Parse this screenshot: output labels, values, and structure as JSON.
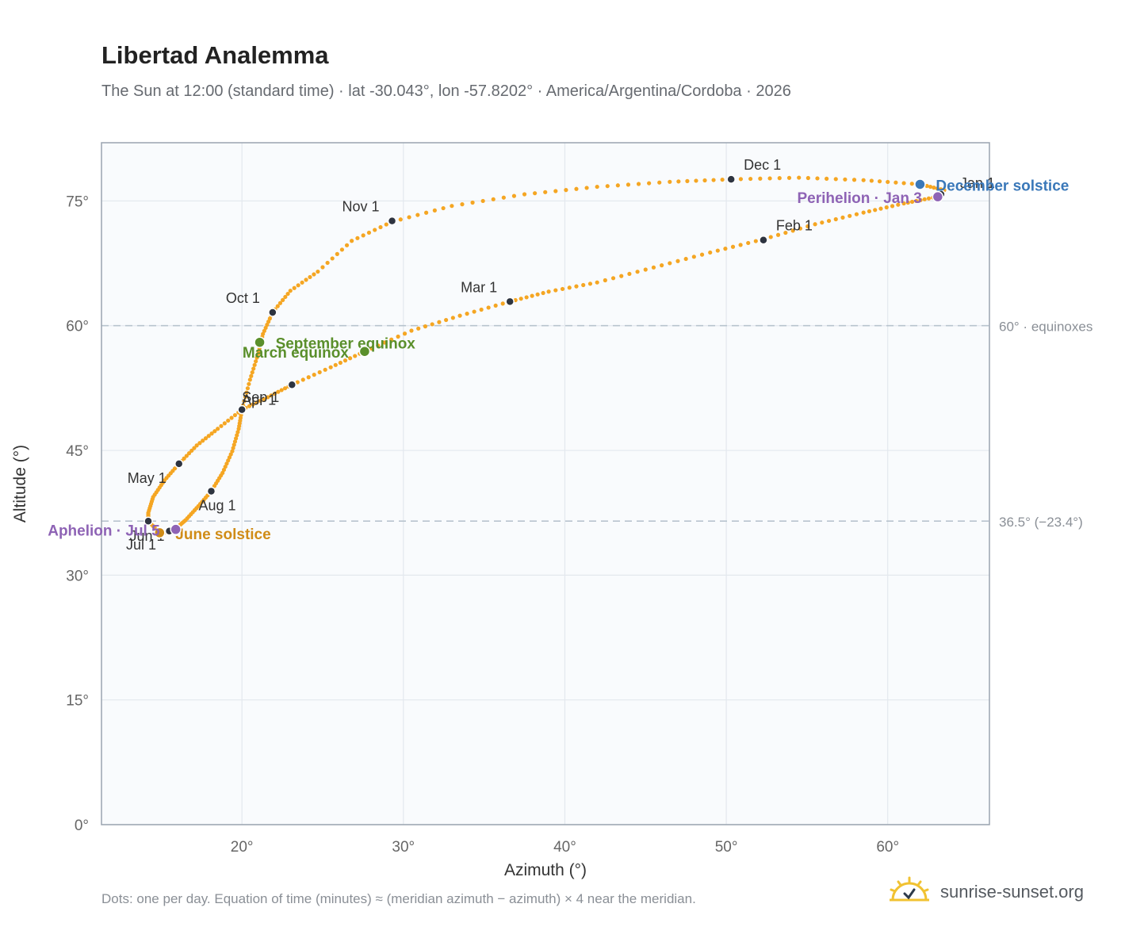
{
  "page": {
    "title": "Libertad Analemma",
    "subtitle": "The Sun at 12:00 (standard time) · lat -30.043°, lon -57.8202° · America/Argentina/Cordoba · 2026",
    "footnote": "Dots: one per day. Equation of time (minutes) ≈ (meridian azimuth − azimuth) × 4 near the meridian.",
    "brand": "sunrise-sunset.org"
  },
  "chart_data": {
    "type": "scatter",
    "xlabel": "Azimuth (°)",
    "ylabel": "Altitude (°)",
    "xlim": [
      11.3,
      66.3
    ],
    "ylim": [
      0,
      82
    ],
    "xticks": [
      20,
      30,
      40,
      50,
      60
    ],
    "xtick_labels": [
      "20°",
      "30°",
      "40°",
      "50°",
      "60°"
    ],
    "yticks": [
      0,
      15,
      30,
      45,
      60,
      75
    ],
    "ytick_labels": [
      "0°",
      "15°",
      "30°",
      "45°",
      "60°",
      "75°"
    ],
    "grid": true,
    "reference_lines": [
      {
        "y": 60,
        "label": "60° · equinoxes"
      },
      {
        "y": 36.5,
        "label": "36.5° (−23.4°)"
      }
    ],
    "series": [
      {
        "color": "#f5a623",
        "note": "one dot per day",
        "points": [
          [
            63.2,
            76.0
          ],
          [
            62.8,
            75.4
          ],
          [
            61.0,
            74.7
          ],
          [
            58.5,
            73.6
          ],
          [
            55.5,
            72.2
          ],
          [
            52.3,
            70.4
          ],
          [
            49.0,
            68.8
          ],
          [
            45.5,
            67.0
          ],
          [
            42.0,
            65.2
          ],
          [
            39.0,
            64.1
          ],
          [
            36.6,
            62.9
          ],
          [
            33.5,
            61.2
          ],
          [
            30.5,
            59.4
          ],
          [
            27.6,
            56.9
          ],
          [
            25.5,
            55.0
          ],
          [
            23.1,
            52.9
          ],
          [
            21.6,
            51.4
          ],
          [
            20.0,
            49.9
          ],
          [
            18.5,
            47.6
          ],
          [
            17.2,
            45.6
          ],
          [
            16.1,
            43.4
          ],
          [
            15.2,
            41.4
          ],
          [
            14.5,
            39.4
          ],
          [
            14.2,
            37.5
          ],
          [
            14.2,
            36.5
          ],
          [
            14.9,
            35.1
          ],
          [
            15.4,
            35.2
          ],
          [
            15.9,
            35.6
          ],
          [
            16.5,
            36.6
          ],
          [
            17.3,
            38.3
          ],
          [
            18.1,
            40.1
          ],
          [
            18.8,
            42.3
          ],
          [
            19.4,
            44.9
          ],
          [
            19.8,
            47.6
          ],
          [
            20.0,
            49.9
          ],
          [
            20.5,
            53.5
          ],
          [
            21.0,
            56.6
          ],
          [
            21.3,
            59.0
          ],
          [
            21.9,
            61.6
          ],
          [
            23.0,
            64.2
          ],
          [
            24.7,
            66.5
          ],
          [
            26.8,
            70.2
          ],
          [
            29.3,
            72.5
          ],
          [
            33.0,
            74.4
          ],
          [
            37.5,
            75.8
          ],
          [
            42.0,
            76.7
          ],
          [
            46.5,
            77.3
          ],
          [
            50.3,
            77.6
          ],
          [
            54.5,
            77.8
          ],
          [
            58.5,
            77.5
          ],
          [
            62.0,
            77.0
          ],
          [
            63.5,
            76.3
          ],
          [
            63.2,
            76.0
          ]
        ]
      }
    ],
    "month_markers": [
      {
        "label": "Jan 1",
        "x": 63.3,
        "y": 75.8
      },
      {
        "label": "Feb 1",
        "x": 52.3,
        "y": 70.3
      },
      {
        "label": "Mar 1",
        "x": 36.6,
        "y": 62.9
      },
      {
        "label": "Apr 1",
        "x": 20.0,
        "y": 49.9
      },
      {
        "label": "May 1",
        "x": 16.1,
        "y": 43.4
      },
      {
        "label": "Jun 1",
        "x": 15.5,
        "y": 35.3
      },
      {
        "label": "Jul 1",
        "x": 14.2,
        "y": 36.5
      },
      {
        "label": "Aug 1",
        "x": 18.1,
        "y": 40.1
      },
      {
        "label": "Sep 1",
        "x": 23.1,
        "y": 52.9
      },
      {
        "label": "Oct 1",
        "x": 21.9,
        "y": 61.6
      },
      {
        "label": "Nov 1",
        "x": 29.3,
        "y": 72.6
      },
      {
        "label": "Dec 1",
        "x": 50.3,
        "y": 77.6
      }
    ],
    "events": [
      {
        "label": "December solstice",
        "x": 62.0,
        "y": 77.0,
        "color": "#3a78b9"
      },
      {
        "label": "Perihelion · Jan 3",
        "x": 63.1,
        "y": 75.5,
        "color": "#8e63b5"
      },
      {
        "label": "September equinox",
        "x": 21.1,
        "y": 58.0,
        "color": "#5a8f2b"
      },
      {
        "label": "March equinox",
        "x": 27.6,
        "y": 56.9,
        "color": "#5a8f2b"
      },
      {
        "label": "June solstice",
        "x": 14.9,
        "y": 35.1,
        "color": "#d08c17"
      },
      {
        "label": "Aphelion · Jul 5",
        "x": 15.9,
        "y": 35.5,
        "color": "#8e63b5"
      }
    ]
  }
}
